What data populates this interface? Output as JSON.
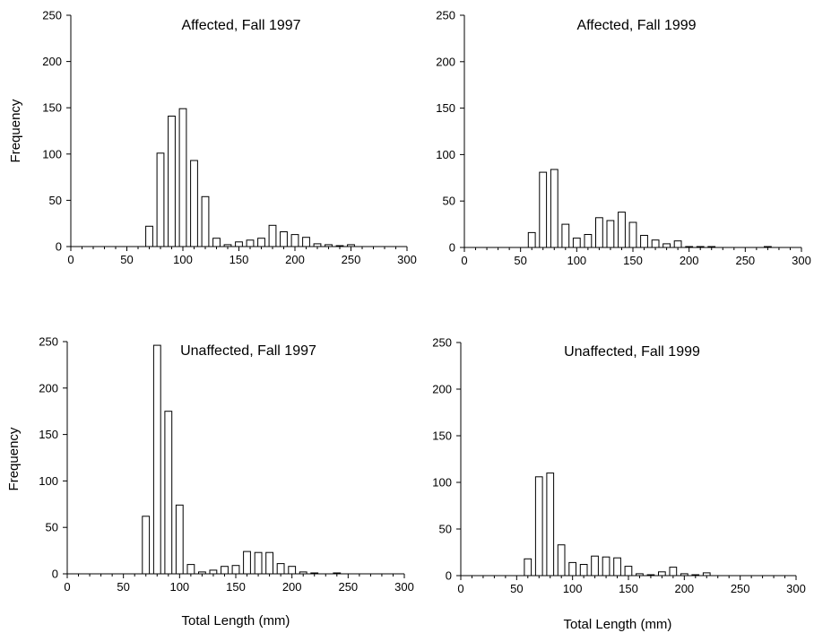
{
  "chart_data": [
    {
      "type": "bar",
      "title": "Affected, Fall 1997",
      "ylabel": "Frequency",
      "xlabel": "",
      "xlim": [
        0,
        300
      ],
      "ylim": [
        0,
        250
      ],
      "xticks": [
        "0",
        "50",
        "100",
        "150",
        "200",
        "250",
        "300"
      ],
      "yticks": [
        "0",
        "50",
        "100",
        "150",
        "200",
        "250"
      ],
      "bin_width": 10,
      "x": [
        70,
        80,
        90,
        100,
        110,
        120,
        130,
        140,
        150,
        160,
        170,
        180,
        190,
        200,
        210,
        220,
        230,
        240,
        250
      ],
      "values": [
        22,
        101,
        141,
        149,
        93,
        54,
        9,
        2,
        5,
        7,
        9,
        23,
        16,
        13,
        10,
        3,
        2,
        1,
        2
      ]
    },
    {
      "type": "bar",
      "title": "Affected, Fall 1999",
      "ylabel": "",
      "xlabel": "",
      "xlim": [
        0,
        300
      ],
      "ylim": [
        0,
        250
      ],
      "xticks": [
        "0",
        "50",
        "100",
        "150",
        "200",
        "250",
        "300"
      ],
      "yticks": [
        "0",
        "50",
        "100",
        "150",
        "200",
        "250"
      ],
      "bin_width": 10,
      "x": [
        60,
        70,
        80,
        90,
        100,
        110,
        120,
        130,
        140,
        150,
        160,
        170,
        180,
        190,
        200,
        210,
        220,
        270
      ],
      "values": [
        16,
        81,
        84,
        25,
        10,
        14,
        32,
        29,
        38,
        27,
        13,
        8,
        4,
        7,
        1,
        1,
        1,
        1
      ]
    },
    {
      "type": "bar",
      "title": "Unaffected, Fall 1997",
      "ylabel": "Frequency",
      "xlabel": "Total Length (mm)",
      "xlim": [
        0,
        300
      ],
      "ylim": [
        0,
        250
      ],
      "xticks": [
        "0",
        "50",
        "100",
        "150",
        "200",
        "250",
        "300"
      ],
      "yticks": [
        "0",
        "50",
        "100",
        "150",
        "200",
        "250"
      ],
      "bin_width": 10,
      "x": [
        70,
        80,
        90,
        100,
        110,
        120,
        130,
        140,
        150,
        160,
        170,
        180,
        190,
        200,
        210,
        220,
        240
      ],
      "values": [
        62,
        246,
        175,
        74,
        10,
        2,
        4,
        8,
        9,
        24,
        23,
        23,
        11,
        8,
        2,
        1,
        1
      ]
    },
    {
      "type": "bar",
      "title": "Unaffected, Fall 1999",
      "ylabel": "",
      "xlabel": "Total Length (mm)",
      "xlim": [
        0,
        300
      ],
      "ylim": [
        0,
        250
      ],
      "xticks": [
        "0",
        "50",
        "100",
        "150",
        "200",
        "250",
        "300"
      ],
      "yticks": [
        "0",
        "50",
        "100",
        "150",
        "200",
        "250"
      ],
      "bin_width": 10,
      "x": [
        60,
        70,
        80,
        90,
        100,
        110,
        120,
        130,
        140,
        150,
        160,
        170,
        180,
        190,
        200,
        210,
        220
      ],
      "values": [
        18,
        106,
        110,
        33,
        14,
        12,
        21,
        20,
        19,
        10,
        2,
        1,
        4,
        9,
        2,
        1,
        3
      ]
    }
  ]
}
